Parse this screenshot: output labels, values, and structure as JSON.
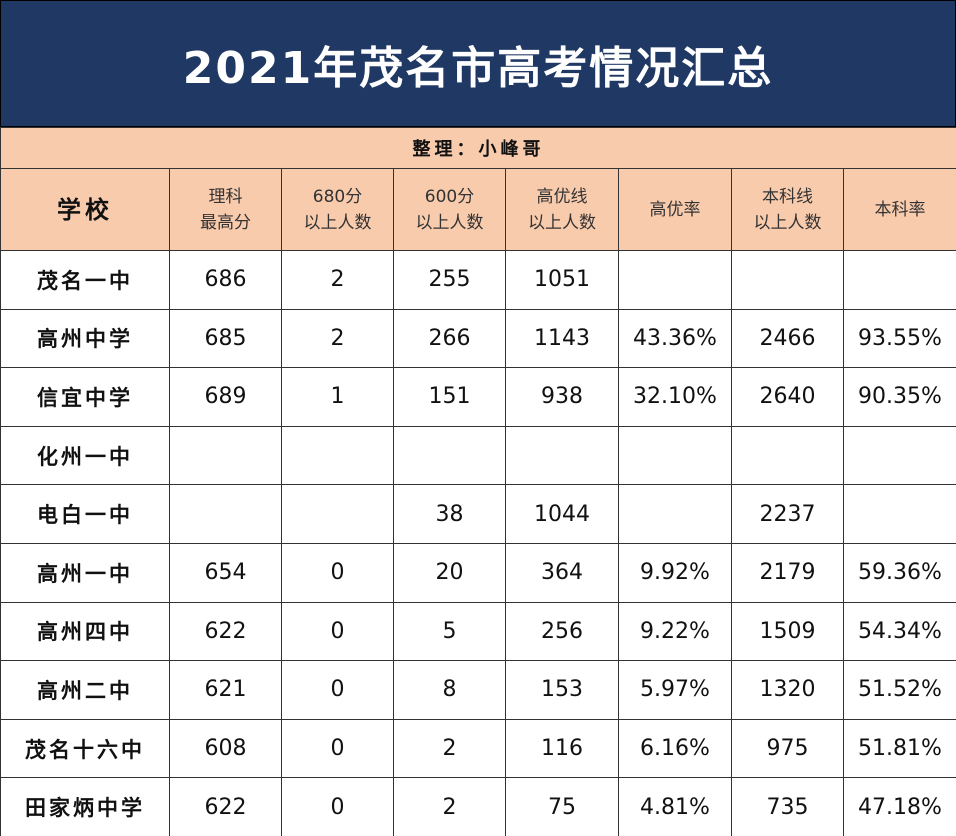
{
  "header": {
    "title": "2021年茂名市高考情况汇总",
    "subtitle": "整理：小峰哥"
  },
  "table": {
    "columns": [
      [
        "学校"
      ],
      [
        "理科",
        "最高分"
      ],
      [
        "680分",
        "以上人数"
      ],
      [
        "600分",
        "以上人数"
      ],
      [
        "高优线",
        "以上人数"
      ],
      [
        "高优率"
      ],
      [
        "本科线",
        "以上人数"
      ],
      [
        "本科率"
      ]
    ],
    "rows": [
      [
        "茂名一中",
        "686",
        "2",
        "255",
        "1051",
        null,
        null,
        null
      ],
      [
        "高州中学",
        "685",
        "2",
        "266",
        "1143",
        "43.36%",
        "2466",
        "93.55%"
      ],
      [
        "信宜中学",
        "689",
        "1",
        "151",
        "938",
        "32.10%",
        "2640",
        "90.35%"
      ],
      [
        "化州一中",
        null,
        null,
        null,
        null,
        null,
        null,
        null
      ],
      [
        "电白一中",
        null,
        null,
        "38",
        "1044",
        null,
        "2237",
        null
      ],
      [
        "高州一中",
        "654",
        "0",
        "20",
        "364",
        "9.92%",
        "2179",
        "59.36%"
      ],
      [
        "高州四中",
        "622",
        "0",
        "5",
        "256",
        "9.22%",
        "1509",
        "54.34%"
      ],
      [
        "高州二中",
        "621",
        "0",
        "8",
        "153",
        "5.97%",
        "1320",
        "51.52%"
      ],
      [
        "茂名十六中",
        "608",
        "0",
        "2",
        "116",
        "6.16%",
        "975",
        "51.81%"
      ],
      [
        "田家炳中学",
        "622",
        "0",
        "2",
        "75",
        "4.81%",
        "735",
        "47.18%"
      ]
    ]
  }
}
